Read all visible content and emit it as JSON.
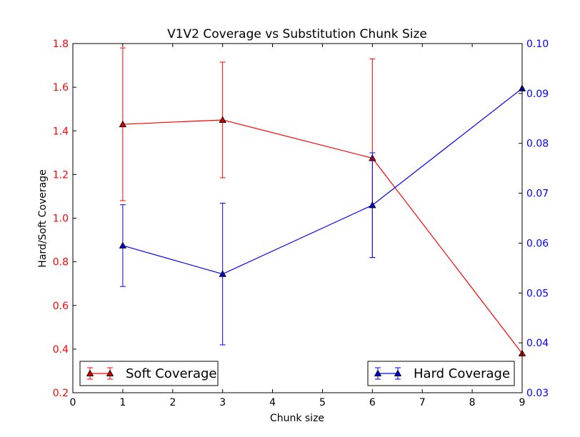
{
  "chart_data": {
    "type": "line",
    "title": "V1V2 Coverage vs Substitution Chunk Size",
    "xlabel": "Chunk size",
    "ylabel": "Hard/Soft Coverage",
    "xlim": [
      0,
      9
    ],
    "ylim_left": [
      0.2,
      1.8
    ],
    "ylim_right": [
      0.03,
      0.1
    ],
    "x_ticks": [
      "0",
      "1",
      "2",
      "3",
      "4",
      "5",
      "6",
      "7",
      "8",
      "9"
    ],
    "y_ticks_left": [
      "0.2",
      "0.4",
      "0.6",
      "0.8",
      "1.0",
      "1.2",
      "1.4",
      "1.6",
      "1.8"
    ],
    "y_ticks_right": [
      "0.03",
      "0.04",
      "0.05",
      "0.06",
      "0.07",
      "0.08",
      "0.09",
      "0.10"
    ],
    "grid": false,
    "series": [
      {
        "name": "Soft Coverage",
        "axis": "left",
        "color": "#ff0000",
        "marker_fill": "#cc0000",
        "x": [
          1,
          3,
          6,
          9
        ],
        "y": [
          1.43,
          1.45,
          1.275,
          0.38
        ],
        "err": [
          0.35,
          0.265,
          0.455,
          0.0
        ],
        "legend_position": "lower-left"
      },
      {
        "name": "Hard Coverage",
        "axis": "right",
        "color": "#0000ff",
        "marker_fill": "#0000cc",
        "x": [
          1,
          3,
          6,
          9
        ],
        "y": [
          0.0595,
          0.0538,
          0.0676,
          0.091
        ],
        "err": [
          0.0082,
          0.0142,
          0.0105,
          0.0
        ],
        "legend_position": "lower-right"
      }
    ]
  }
}
